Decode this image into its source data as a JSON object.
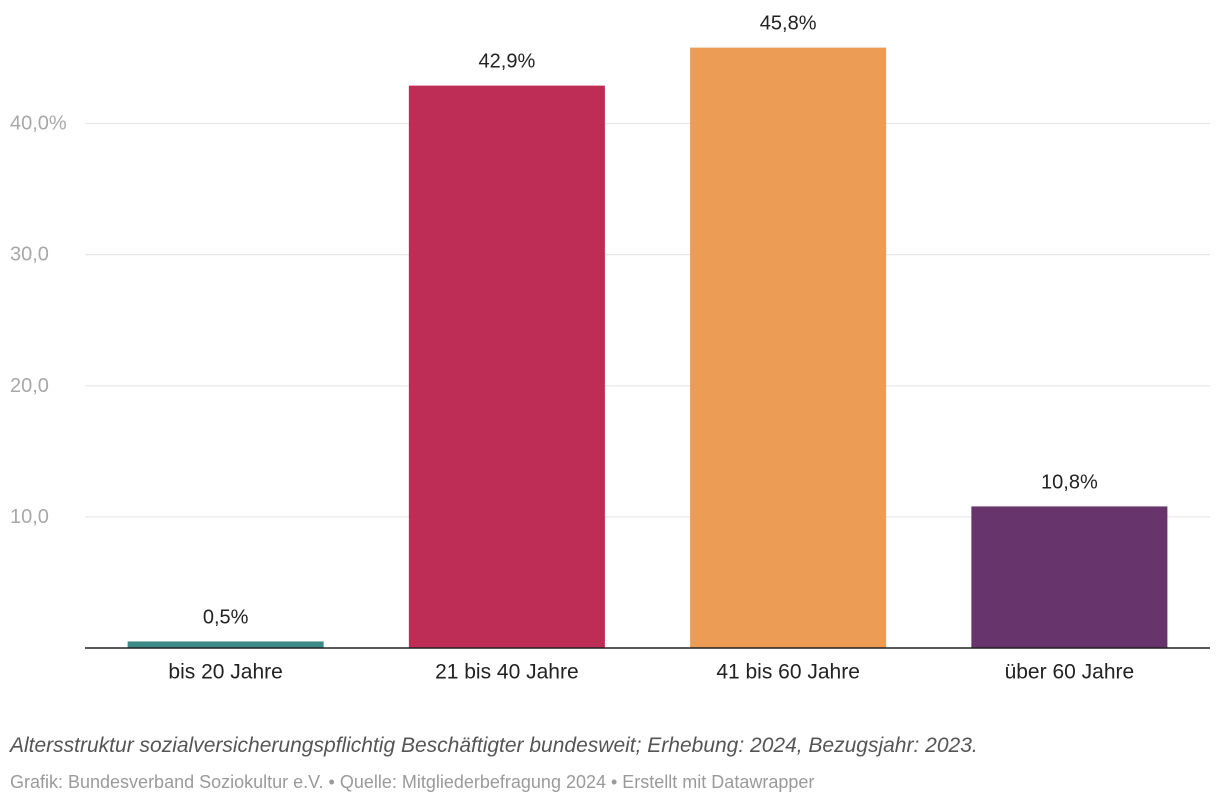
{
  "chart_data": {
    "type": "bar",
    "title": "",
    "xlabel": "",
    "ylabel": "",
    "categories": [
      "bis 20 Jahre",
      "21 bis 40 Jahre",
      "41 bis 60 Jahre",
      "über 60 Jahre"
    ],
    "values": [
      0.5,
      42.9,
      45.8,
      10.8
    ],
    "value_labels": [
      "0,5%",
      "42,9%",
      "45,8%",
      "10,8%"
    ],
    "colors": [
      "#3c8a87",
      "#bd2d55",
      "#ec9c55",
      "#67346c"
    ],
    "ylim": [
      0,
      45.8
    ],
    "yticks": [
      10,
      20,
      30,
      40
    ],
    "ytick_labels": [
      "10,0",
      "20,0",
      "30,0",
      "40,0%"
    ],
    "grid": true,
    "legend": "none"
  },
  "caption": "Altersstruktur sozialversicherungspflichtig Beschäftigter bundesweit; Erhebung: 2024, Bezugsjahr: 2023.",
  "credits": "Grafik: Bundesverband Soziokultur e.V. • Quelle: Mitgliederbefragung 2024 • Erstellt mit Datawrapper"
}
